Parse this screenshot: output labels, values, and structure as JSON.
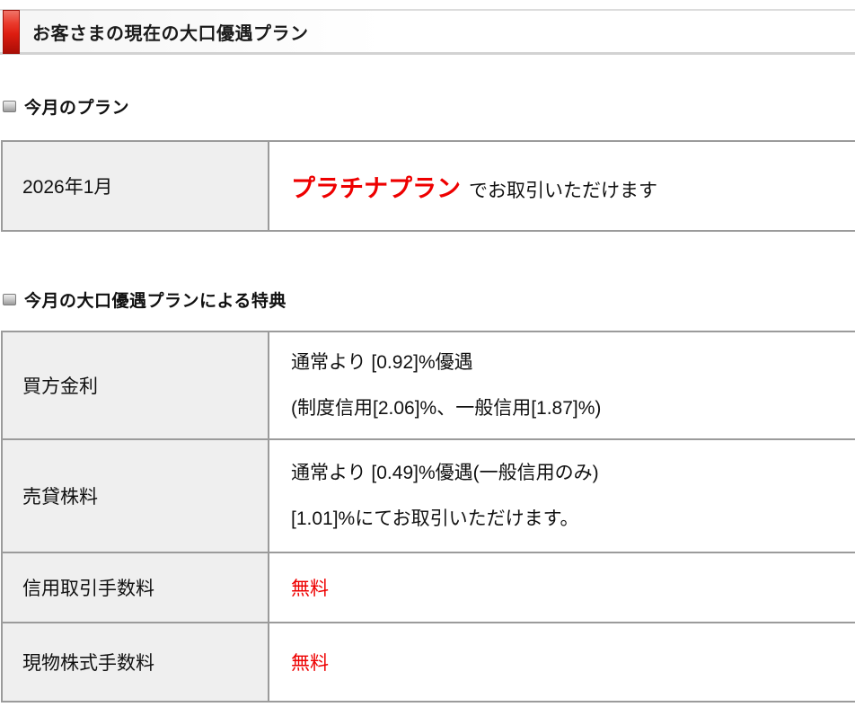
{
  "header": {
    "title": "お客さまの現在の大口優遇プラン"
  },
  "current_plan": {
    "heading": "今月のプラン",
    "month": "2026年1月",
    "plan_name": "プラチナプラン",
    "plan_suffix": "でお取引いただけます"
  },
  "benefits": {
    "heading": "今月の大口優遇プランによる特典",
    "rows": [
      {
        "label": "買方金利",
        "lines": [
          "通常より [0.92]%優遇",
          "(制度信用[2.06]%、一般信用[1.87]%)"
        ],
        "highlighted": false
      },
      {
        "label": "売貸株料",
        "lines": [
          "通常より [0.49]%優遇(一般信用のみ)",
          "[1.01]%にてお取引いただけます。"
        ],
        "highlighted": false
      },
      {
        "label": "信用取引手数料",
        "lines": [
          "無料"
        ],
        "highlighted": true
      },
      {
        "label": "現物株式手数料",
        "lines": [
          "無料"
        ],
        "highlighted": true
      }
    ]
  },
  "colors": {
    "accent_red": "#dd1d10",
    "highlight_text_red": "#ee0000",
    "table_border_gray": "#9b9b9b",
    "label_cell_bg": "#efefef"
  }
}
